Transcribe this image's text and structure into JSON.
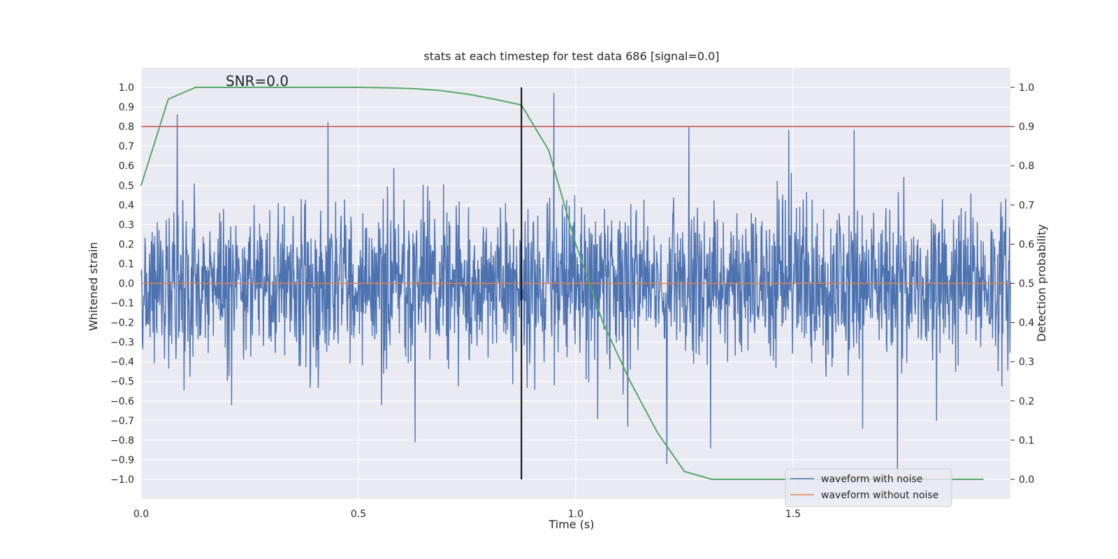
{
  "chart_data": {
    "type": "line",
    "title": "stats at each timestep for test data 686 [signal=0.0]",
    "xlabel": "Time (s)",
    "ylabel_left": "Whitened strain",
    "ylabel_right": "Detection probability",
    "annotation": "SNR=0.0",
    "xlim": [
      0.0,
      2.0
    ],
    "ylim_left": [
      -1.1,
      1.1
    ],
    "ylim_right": [
      -0.05,
      1.05
    ],
    "x_ticks": [
      0.0,
      0.5,
      1.0,
      1.5
    ],
    "x_tick_labels": [
      "0.0",
      "0.5",
      "1.0",
      "1.5"
    ],
    "y_left_ticks": [
      1.0,
      0.9,
      0.8,
      0.7,
      0.6,
      0.5,
      0.4,
      0.3,
      0.2,
      0.1,
      0.0,
      -0.1,
      -0.2,
      -0.3,
      -0.4,
      -0.5,
      -0.6,
      -0.7,
      -0.8,
      -0.9,
      -1.0
    ],
    "y_left_tick_labels": [
      "1.0",
      "0.9",
      "0.8",
      "0.7",
      "0.6",
      "0.5",
      "0.4",
      "0.3",
      "0.2",
      "0.1",
      "0.0",
      "−0.1",
      "−0.2",
      "−0.3",
      "−0.4",
      "−0.5",
      "−0.6",
      "−0.7",
      "−0.8",
      "−0.9",
      "−1.0"
    ],
    "y_right_ticks": [
      1.0,
      0.9,
      0.8,
      0.7,
      0.6,
      0.5,
      0.4,
      0.3,
      0.2,
      0.1,
      0.0
    ],
    "y_right_tick_labels": [
      "1.0",
      "0.9",
      "0.8",
      "0.7",
      "0.6",
      "0.5",
      "0.4",
      "0.3",
      "0.2",
      "0.1",
      "0.0"
    ],
    "grid": true,
    "legend_position": "lower-right",
    "series": [
      {
        "name": "waveform with noise",
        "color": "#4c72b0",
        "axis": "left",
        "kind": "noise",
        "x_start": 0.0,
        "x_end": 2.0,
        "sample_count": 2048,
        "std": 0.2,
        "spikes": [
          {
            "x": 0.083,
            "y": 0.86
          },
          {
            "x": 0.43,
            "y": 0.82
          },
          {
            "x": 0.63,
            "y": -0.81
          },
          {
            "x": 0.95,
            "y": 0.97
          },
          {
            "x": 1.05,
            "y": -0.69
          },
          {
            "x": 1.12,
            "y": -0.73
          },
          {
            "x": 1.21,
            "y": -0.92
          },
          {
            "x": 1.26,
            "y": 0.8
          },
          {
            "x": 1.31,
            "y": -0.84
          },
          {
            "x": 1.49,
            "y": 0.78
          },
          {
            "x": 1.64,
            "y": 0.78
          },
          {
            "x": 1.66,
            "y": -0.74
          },
          {
            "x": 1.74,
            "y": -0.98
          },
          {
            "x": 1.83,
            "y": -0.7
          }
        ]
      },
      {
        "name": "waveform without noise",
        "color": "#dd8452",
        "axis": "left",
        "x": [
          0.0,
          2.0
        ],
        "values": [
          0.0,
          0.0
        ]
      },
      {
        "name": "detection probability",
        "color": "#55a868",
        "axis": "right",
        "x": [
          0.0,
          0.0625,
          0.125,
          0.1875,
          0.25,
          0.3125,
          0.375,
          0.4375,
          0.5,
          0.5625,
          0.625,
          0.6875,
          0.75,
          0.8125,
          0.875,
          0.9375,
          1.0,
          1.0625,
          1.125,
          1.1875,
          1.25,
          1.3125,
          1.375,
          1.4375,
          1.5,
          1.5625,
          1.625,
          1.6875,
          1.75,
          1.8125,
          1.875,
          1.9375
        ],
        "values": [
          0.75,
          0.97,
          1.0,
          1.0,
          1.0,
          1.0,
          1.0,
          1.0,
          1.0,
          0.999,
          0.997,
          0.992,
          0.983,
          0.97,
          0.955,
          0.84,
          0.6,
          0.4,
          0.25,
          0.12,
          0.02,
          0.0,
          0.0,
          0.0,
          0.0,
          0.0,
          0.0,
          0.0,
          0.0,
          0.0,
          0.0,
          0.0
        ]
      }
    ],
    "threshold": {
      "value": 0.9,
      "axis": "right",
      "color": "#c44e52"
    },
    "marker_line": {
      "x": 0.875,
      "y_range_right": [
        0.0,
        1.0
      ],
      "color": "#000000"
    }
  }
}
